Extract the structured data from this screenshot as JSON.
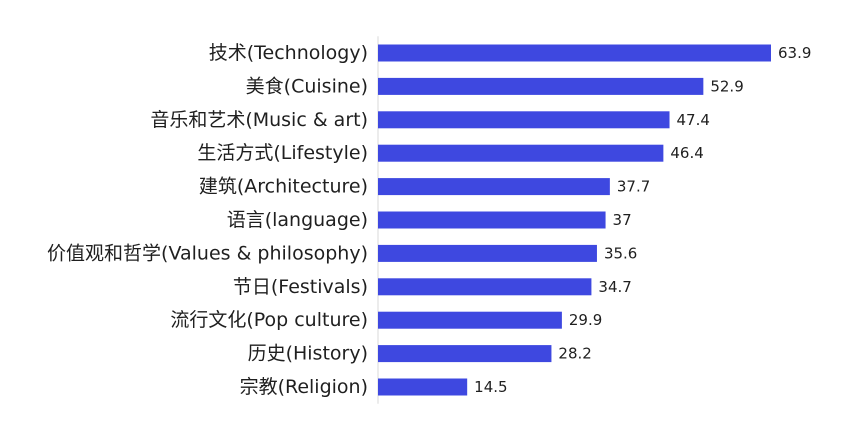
{
  "chart_data": {
    "type": "bar",
    "orientation": "horizontal",
    "title": "",
    "xlabel": "",
    "ylabel": "",
    "categories": [
      "技术(Technology)",
      "美食(Cuisine)",
      "音乐和艺术(Music & art)",
      "生活方式(Lifestyle)",
      "建筑(Architecture)",
      "语言(language)",
      "价值观和哲学(Values & philosophy)",
      "节日(Festivals)",
      "流行文化(Pop culture)",
      "历史(History)",
      "宗教(Religion)"
    ],
    "values": [
      63.9,
      52.9,
      47.4,
      46.4,
      37.7,
      37,
      35.6,
      34.7,
      29.9,
      28.2,
      14.5
    ],
    "value_labels": [
      "63.9",
      "52.9",
      "47.4",
      "46.4",
      "37.7",
      "37",
      "35.6",
      "34.7",
      "29.9",
      "28.2",
      "14.5"
    ],
    "xlim": [
      0,
      63.9
    ],
    "grid": false,
    "legend": "none",
    "bar_color": "#3e48e0",
    "text_color": "#1f1f1f"
  }
}
